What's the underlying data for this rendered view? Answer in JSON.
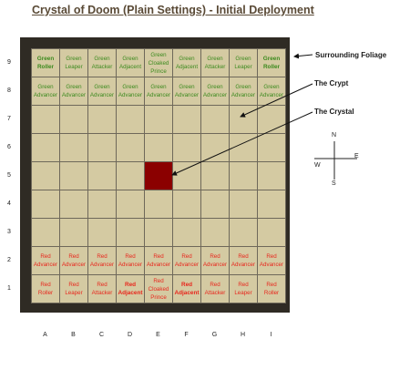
{
  "title": "Crystal of Doom (Plain Settings) - Initial Deployment",
  "columns": [
    "A",
    "B",
    "C",
    "D",
    "E",
    "F",
    "G",
    "H",
    "I"
  ],
  "rows": [
    "9",
    "8",
    "7",
    "6",
    "5",
    "4",
    "3",
    "2",
    "1"
  ],
  "board": {
    "row9": [
      {
        "text": "Green Roller",
        "team": "green",
        "bold": true
      },
      {
        "text": "Green Leaper",
        "team": "green",
        "bold": false
      },
      {
        "text": "Green Attacker",
        "team": "green",
        "bold": false
      },
      {
        "text": "Green Adjacent",
        "team": "green",
        "bold": false
      },
      {
        "text": "Green Cloaked Prince",
        "team": "green",
        "bold": false
      },
      {
        "text": "Green Adjacent",
        "team": "green",
        "bold": false
      },
      {
        "text": "Green Attacker",
        "team": "green",
        "bold": false
      },
      {
        "text": "Green Leaper",
        "team": "green",
        "bold": false
      },
      {
        "text": "Green Roller",
        "team": "green",
        "bold": true
      }
    ],
    "row8": [
      {
        "text": "Green Advancer",
        "team": "green"
      },
      {
        "text": "Green Advancer",
        "team": "green"
      },
      {
        "text": "Green Advancer",
        "team": "green"
      },
      {
        "text": "Green Advancer",
        "team": "green"
      },
      {
        "text": "Green Advancer",
        "team": "green"
      },
      {
        "text": "Green Advancer",
        "team": "green"
      },
      {
        "text": "Green Advancer",
        "team": "green"
      },
      {
        "text": "Green Advancer",
        "team": "green"
      },
      {
        "text": "Green Advancer",
        "team": "green"
      }
    ],
    "row2": [
      {
        "text": "Red Advancer",
        "team": "red"
      },
      {
        "text": "Red Advancer",
        "team": "red"
      },
      {
        "text": "Red Advancer",
        "team": "red"
      },
      {
        "text": "Red Advancer",
        "team": "red"
      },
      {
        "text": "Red Advancer",
        "team": "red"
      },
      {
        "text": "Red Advancer",
        "team": "red"
      },
      {
        "text": "Red Advancer",
        "team": "red"
      },
      {
        "text": "Red Advancer",
        "team": "red"
      },
      {
        "text": "Red Advancer",
        "team": "red"
      }
    ],
    "row1": [
      {
        "text": "Red Roller",
        "team": "red"
      },
      {
        "text": "Red Leaper",
        "team": "red"
      },
      {
        "text": "Red Attacker",
        "team": "red"
      },
      {
        "text": "Red Adjacent",
        "team": "red",
        "bold": true
      },
      {
        "text": "Red Cloaked Prince",
        "team": "red"
      },
      {
        "text": "Red Adjacent",
        "team": "red",
        "bold": true
      },
      {
        "text": "Red Attacker",
        "team": "red"
      },
      {
        "text": "Red Leaper",
        "team": "red"
      },
      {
        "text": "Red Roller",
        "team": "red"
      }
    ],
    "crystal_cell": "E5",
    "colors": {
      "green": "#3c8a1e",
      "red": "#e8261c",
      "crystal": "#8b0000",
      "tile": "#d4caa2",
      "frame": "#2f2b24"
    }
  },
  "annotations": {
    "foliage": "Surrounding Foliage",
    "crypt": "The Crypt",
    "crystal": "The Crystal"
  },
  "compass": {
    "n": "N",
    "e": "E",
    "s": "S",
    "w": "W"
  }
}
